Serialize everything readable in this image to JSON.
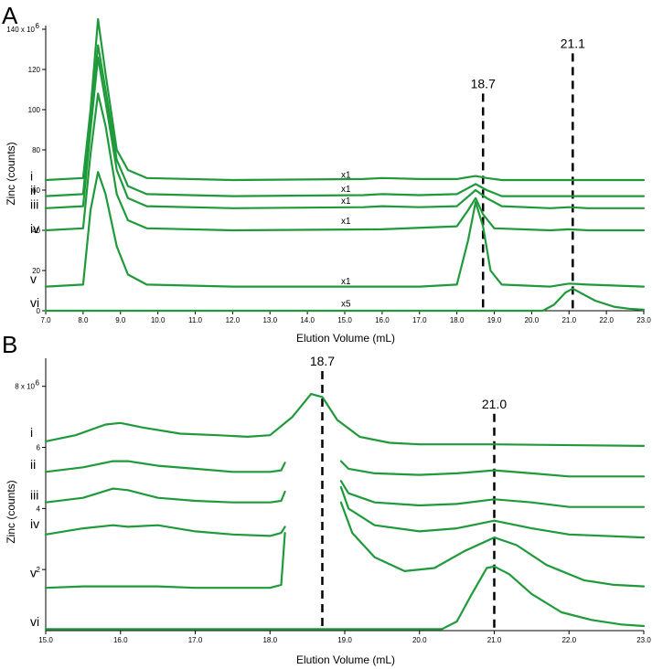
{
  "chart_data": [
    {
      "type": "line",
      "panel": "A",
      "xlabel": "Elution Volume (mL)",
      "ylabel": "Zinc (counts)",
      "xlim": [
        7.0,
        23.0
      ],
      "ylim": [
        0,
        140
      ],
      "y_scale_label": "140 x 10",
      "y_scale_exp": "6",
      "x_ticks": [
        "7.0",
        "8.0",
        "9.0",
        "10.0",
        "11.0",
        "12.0",
        "13.0",
        "14.0",
        "15.0",
        "16.0",
        "17.0",
        "18.0",
        "19.0",
        "20.0",
        "21.0",
        "22.0",
        "23.0"
      ],
      "x_tick_values": [
        7,
        8,
        9,
        10,
        11,
        12,
        13,
        14,
        15,
        16,
        17,
        18,
        19,
        20,
        21,
        22,
        23
      ],
      "y_ticks": [
        "",
        "120",
        "100",
        "80",
        "60",
        "40",
        "20",
        "0"
      ],
      "y_tick_values": [
        140,
        120,
        100,
        80,
        60,
        40,
        20,
        0
      ],
      "line_color": "#1f9a3a",
      "markers": [
        {
          "x": 18.7,
          "label": "18.7",
          "y_top": 108
        },
        {
          "x": 21.1,
          "label": "21.1",
          "y_top": 128
        }
      ],
      "series": [
        {
          "label": "i",
          "multiplier": "x1",
          "label_y": 67,
          "mult_x": 15.0,
          "mult_y": 67,
          "points": [
            [
              7.0,
              65
            ],
            [
              8.0,
              66
            ],
            [
              8.2,
              100
            ],
            [
              8.4,
              145
            ],
            [
              8.6,
              118
            ],
            [
              8.9,
              80
            ],
            [
              9.2,
              70
            ],
            [
              9.7,
              66
            ],
            [
              12,
              65
            ],
            [
              15.5,
              65.5
            ],
            [
              16,
              66
            ],
            [
              17,
              65.5
            ],
            [
              18.0,
              65.5
            ],
            [
              18.5,
              67
            ],
            [
              18.8,
              66
            ],
            [
              19.2,
              65
            ],
            [
              23.0,
              65
            ]
          ]
        },
        {
          "label": "ii",
          "multiplier": "x1",
          "label_y": 60,
          "mult_x": 15.0,
          "mult_y": 60,
          "points": [
            [
              7.0,
              57
            ],
            [
              8.0,
              58
            ],
            [
              8.2,
              95
            ],
            [
              8.4,
              132
            ],
            [
              8.6,
              110
            ],
            [
              8.9,
              75
            ],
            [
              9.2,
              62
            ],
            [
              9.7,
              58
            ],
            [
              12,
              57
            ],
            [
              15.5,
              57.5
            ],
            [
              16,
              58
            ],
            [
              17,
              57.5
            ],
            [
              18.0,
              58
            ],
            [
              18.5,
              63
            ],
            [
              18.8,
              60
            ],
            [
              19.2,
              57
            ],
            [
              21,
              57
            ],
            [
              23.0,
              57
            ]
          ]
        },
        {
          "label": "iii",
          "multiplier": "x1",
          "label_y": 53,
          "mult_x": 15.0,
          "mult_y": 54,
          "points": [
            [
              7.0,
              51
            ],
            [
              8.0,
              52
            ],
            [
              8.2,
              90
            ],
            [
              8.4,
              126
            ],
            [
              8.6,
              104
            ],
            [
              8.9,
              70
            ],
            [
              9.2,
              56
            ],
            [
              9.7,
              52
            ],
            [
              12,
              51
            ],
            [
              15.5,
              51.5
            ],
            [
              16,
              52
            ],
            [
              17,
              51.5
            ],
            [
              18.0,
              52
            ],
            [
              18.5,
              60
            ],
            [
              18.8,
              56
            ],
            [
              19.2,
              52
            ],
            [
              20.5,
              51
            ],
            [
              21,
              51.5
            ],
            [
              21.5,
              51
            ],
            [
              23.0,
              51
            ]
          ]
        },
        {
          "label": "iv",
          "multiplier": "x1",
          "label_y": 41,
          "mult_x": 15.0,
          "mult_y": 44,
          "points": [
            [
              7.0,
              40
            ],
            [
              8.0,
              41
            ],
            [
              8.2,
              78
            ],
            [
              8.4,
              108
            ],
            [
              8.6,
              92
            ],
            [
              8.9,
              58
            ],
            [
              9.2,
              45
            ],
            [
              9.7,
              41
            ],
            [
              12,
              40
            ],
            [
              16,
              40.5
            ],
            [
              18.0,
              42
            ],
            [
              18.3,
              50
            ],
            [
              18.5,
              56
            ],
            [
              18.7,
              48
            ],
            [
              19.0,
              41
            ],
            [
              20.5,
              40
            ],
            [
              21,
              40.5
            ],
            [
              21.5,
              40
            ],
            [
              23.0,
              40
            ]
          ]
        },
        {
          "label": "v",
          "multiplier": "x1",
          "label_y": 16,
          "mult_x": 15.0,
          "mult_y": 14,
          "points": [
            [
              7.0,
              12
            ],
            [
              8.0,
              13
            ],
            [
              8.2,
              50
            ],
            [
              8.4,
              69
            ],
            [
              8.6,
              58
            ],
            [
              8.9,
              32
            ],
            [
              9.2,
              18
            ],
            [
              9.7,
              13
            ],
            [
              12,
              12
            ],
            [
              17,
              12
            ],
            [
              18.0,
              13
            ],
            [
              18.3,
              35
            ],
            [
              18.5,
              54
            ],
            [
              18.7,
              42
            ],
            [
              18.9,
              20
            ],
            [
              19.2,
              13
            ],
            [
              20.5,
              12
            ],
            [
              21.0,
              13.5
            ],
            [
              21.5,
              13
            ],
            [
              23.0,
              12
            ]
          ]
        },
        {
          "label": "vi",
          "multiplier": "x5",
          "label_y": 4,
          "mult_x": 15.0,
          "mult_y": 3,
          "points": [
            [
              7.0,
              0
            ],
            [
              20.3,
              0
            ],
            [
              20.6,
              3
            ],
            [
              20.9,
              9
            ],
            [
              21.1,
              11
            ],
            [
              21.3,
              9
            ],
            [
              21.7,
              5
            ],
            [
              22.2,
              2
            ],
            [
              22.6,
              1
            ],
            [
              23.0,
              0.5
            ]
          ]
        }
      ]
    },
    {
      "type": "line",
      "panel": "B",
      "xlabel": "Elution Volume (mL)",
      "ylabel": "Zinc (counts)",
      "xlim": [
        15.0,
        23.0
      ],
      "ylim": [
        0,
        8.8
      ],
      "y_scale_label": "8 x 10",
      "y_scale_exp": "6",
      "x_ticks": [
        "15.0",
        "16.0",
        "17.0",
        "18.0",
        "19.0",
        "20.0",
        "21.0",
        "22.0",
        "23.0"
      ],
      "x_tick_values": [
        15,
        16,
        17,
        18,
        19,
        20,
        21,
        22,
        23
      ],
      "y_ticks": [
        "",
        "6",
        "4",
        "2"
      ],
      "y_tick_values": [
        8,
        6,
        4,
        2
      ],
      "line_color": "#1f9a3a",
      "markers": [
        {
          "x": 18.7,
          "label": "18.7",
          "y_top": 8.5
        },
        {
          "x": 21.0,
          "label": "21.0",
          "y_top": 7.1
        }
      ],
      "series": [
        {
          "label": "i",
          "label_y": 6.5,
          "segments": [
            [
              [
                15.0,
                6.2
              ],
              [
                15.4,
                6.4
              ],
              [
                15.8,
                6.75
              ],
              [
                16.0,
                6.8
              ],
              [
                16.3,
                6.65
              ],
              [
                16.8,
                6.45
              ],
              [
                17.3,
                6.4
              ],
              [
                17.7,
                6.35
              ],
              [
                18.0,
                6.4
              ],
              [
                18.3,
                7.0
              ],
              [
                18.55,
                7.75
              ],
              [
                18.7,
                7.65
              ],
              [
                18.9,
                6.9
              ],
              [
                19.2,
                6.35
              ],
              [
                19.6,
                6.15
              ],
              [
                20,
                6.1
              ],
              [
                21,
                6.1
              ],
              [
                23.0,
                6.05
              ]
            ]
          ]
        },
        {
          "label": "ii",
          "label_y": 5.45,
          "segments": [
            [
              [
                15.0,
                5.2
              ],
              [
                15.5,
                5.35
              ],
              [
                15.9,
                5.55
              ],
              [
                16.1,
                5.55
              ],
              [
                16.5,
                5.4
              ],
              [
                17,
                5.3
              ],
              [
                17.5,
                5.2
              ],
              [
                18.0,
                5.2
              ],
              [
                18.15,
                5.25
              ],
              [
                18.2,
                5.5
              ]
            ],
            [
              [
                18.95,
                5.55
              ],
              [
                19.05,
                5.3
              ],
              [
                19.4,
                5.15
              ],
              [
                20,
                5.1
              ],
              [
                20.5,
                5.15
              ],
              [
                21.0,
                5.25
              ],
              [
                21.5,
                5.15
              ],
              [
                22,
                5.05
              ],
              [
                23.0,
                5.05
              ]
            ]
          ]
        },
        {
          "label": "iii",
          "label_y": 4.45,
          "segments": [
            [
              [
                15.0,
                4.2
              ],
              [
                15.5,
                4.35
              ],
              [
                15.9,
                4.65
              ],
              [
                16.1,
                4.6
              ],
              [
                16.5,
                4.35
              ],
              [
                17,
                4.25
              ],
              [
                17.5,
                4.2
              ],
              [
                18.0,
                4.2
              ],
              [
                18.15,
                4.25
              ],
              [
                18.2,
                4.55
              ]
            ],
            [
              [
                18.95,
                4.9
              ],
              [
                19.05,
                4.5
              ],
              [
                19.4,
                4.2
              ],
              [
                20,
                4.1
              ],
              [
                20.5,
                4.15
              ],
              [
                21.0,
                4.3
              ],
              [
                21.5,
                4.2
              ],
              [
                22,
                4.05
              ],
              [
                23.0,
                4.05
              ]
            ]
          ]
        },
        {
          "label": "iv",
          "label_y": 3.5,
          "segments": [
            [
              [
                15.0,
                3.15
              ],
              [
                15.5,
                3.35
              ],
              [
                15.9,
                3.45
              ],
              [
                16.1,
                3.4
              ],
              [
                16.5,
                3.45
              ],
              [
                17,
                3.25
              ],
              [
                17.5,
                3.15
              ],
              [
                18.0,
                3.1
              ],
              [
                18.15,
                3.2
              ],
              [
                18.2,
                3.4
              ]
            ],
            [
              [
                18.95,
                4.7
              ],
              [
                19.05,
                4.0
              ],
              [
                19.4,
                3.45
              ],
              [
                20,
                3.25
              ],
              [
                20.5,
                3.35
              ],
              [
                21.0,
                3.6
              ],
              [
                21.5,
                3.35
              ],
              [
                22,
                3.15
              ],
              [
                23.0,
                3.05
              ]
            ]
          ]
        },
        {
          "label": "v",
          "label_y": 1.9,
          "segments": [
            [
              [
                15.0,
                1.4
              ],
              [
                15.5,
                1.45
              ],
              [
                16.0,
                1.45
              ],
              [
                16.5,
                1.45
              ],
              [
                17,
                1.4
              ],
              [
                17.5,
                1.4
              ],
              [
                18.0,
                1.4
              ],
              [
                18.15,
                1.5
              ],
              [
                18.2,
                3.2
              ]
            ],
            [
              [
                18.95,
                4.2
              ],
              [
                19.1,
                3.2
              ],
              [
                19.4,
                2.4
              ],
              [
                19.8,
                1.95
              ],
              [
                20.2,
                2.05
              ],
              [
                20.6,
                2.6
              ],
              [
                21.0,
                3.05
              ],
              [
                21.3,
                2.8
              ],
              [
                21.7,
                2.15
              ],
              [
                22.2,
                1.65
              ],
              [
                22.6,
                1.5
              ],
              [
                23.0,
                1.45
              ]
            ]
          ]
        },
        {
          "label": "vi",
          "label_y": 0.3,
          "segments": [
            [
              [
                15.0,
                0.05
              ],
              [
                20.3,
                0.05
              ],
              [
                20.5,
                0.3
              ],
              [
                20.7,
                1.2
              ],
              [
                20.9,
                2.05
              ],
              [
                21.0,
                2.1
              ],
              [
                21.2,
                1.85
              ],
              [
                21.5,
                1.2
              ],
              [
                21.9,
                0.6
              ],
              [
                22.3,
                0.35
              ],
              [
                22.7,
                0.2
              ],
              [
                23.0,
                0.15
              ]
            ]
          ]
        }
      ]
    }
  ]
}
